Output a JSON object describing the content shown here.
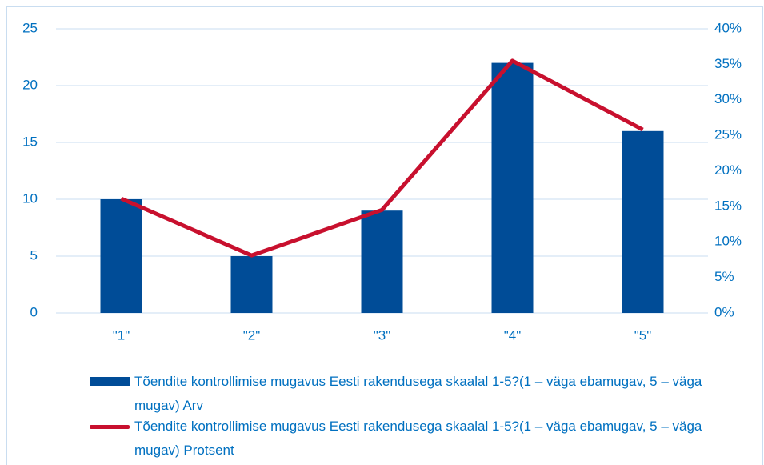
{
  "chart_data": {
    "type": "combo",
    "categories": [
      "\"1\"",
      "\"2\"",
      "\"3\"",
      "\"4\"",
      "\"5\""
    ],
    "series": [
      {
        "name": "Tõendite kontrollimise mugavus Eesti rakendusega skaalal 1-5?(1 – väga ebamugav, 5 – väga mugav) Arv",
        "type": "bar",
        "color": "#004c97",
        "values": [
          10,
          5,
          9,
          22,
          16
        ]
      },
      {
        "name": "Tõendite kontrollimise mugavus Eesti rakendusega skaalal 1-5?(1 – väga ebamugav, 5 – väga mugav) Protsent",
        "type": "line",
        "axis": "y2",
        "color": "#c8102e",
        "values": [
          16.1,
          8.1,
          14.5,
          35.5,
          25.8
        ]
      }
    ],
    "ylim": [
      0,
      25
    ],
    "yticks": [
      0,
      5,
      10,
      15,
      20,
      25
    ],
    "y2lim": [
      0,
      40
    ],
    "y2ticks": [
      {
        "value": 0,
        "label": "0%"
      },
      {
        "value": 5,
        "label": "5%"
      },
      {
        "value": 10,
        "label": "10%"
      },
      {
        "value": 15,
        "label": "15%"
      },
      {
        "value": 20,
        "label": "20%"
      },
      {
        "value": 25,
        "label": "25%"
      },
      {
        "value": 30,
        "label": "30%"
      },
      {
        "value": 35,
        "label": "35%"
      },
      {
        "value": 40,
        "label": "40%"
      }
    ],
    "grid": true,
    "legend": "bottom"
  }
}
